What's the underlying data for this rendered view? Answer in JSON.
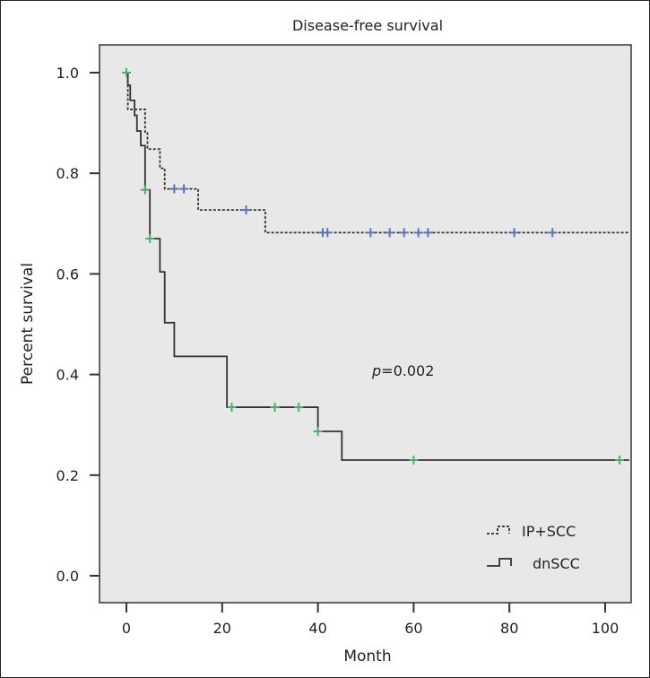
{
  "chart_data": {
    "type": "line",
    "subtype": "kaplan-meier",
    "title": "Disease-free survival",
    "xlabel": "Month",
    "ylabel": "Percent survival",
    "xlim": [
      -6,
      106
    ],
    "ylim": [
      -0.05,
      1.06
    ],
    "xticks": [
      0,
      20,
      40,
      60,
      80,
      100
    ],
    "yticks": [
      "0.0",
      "0.2",
      "0.4",
      "0.6",
      "0.8",
      "1.0"
    ],
    "grid": false,
    "legend_position": "bottom-right",
    "annotation": {
      "p_label": "p",
      "p_value": "=0.002"
    },
    "series": [
      {
        "name": "IP+SCC",
        "style": "dashed",
        "censor_color": "#5b74b8",
        "steps": [
          [
            0,
            1.0
          ],
          [
            0.3,
            0.927
          ],
          [
            3.9,
            0.882
          ],
          [
            4.4,
            0.848
          ],
          [
            7,
            0.81
          ],
          [
            8,
            0.769
          ],
          [
            15,
            0.727
          ],
          [
            29,
            0.682
          ],
          [
            105,
            0.682
          ]
        ],
        "censored": [
          [
            10,
            0.769
          ],
          [
            12,
            0.769
          ],
          [
            25,
            0.727
          ],
          [
            41,
            0.682
          ],
          [
            42,
            0.682
          ],
          [
            51,
            0.682
          ],
          [
            55,
            0.682
          ],
          [
            58,
            0.682
          ],
          [
            61,
            0.682
          ],
          [
            63,
            0.682
          ],
          [
            81,
            0.682
          ],
          [
            89,
            0.682
          ]
        ]
      },
      {
        "name": "dnSCC",
        "style": "solid",
        "censor_color": "#4caf6a",
        "steps": [
          [
            0,
            1.0
          ],
          [
            0.3,
            0.975
          ],
          [
            0.8,
            0.945
          ],
          [
            1.7,
            0.915
          ],
          [
            2.2,
            0.884
          ],
          [
            3,
            0.855
          ],
          [
            3.9,
            0.767
          ],
          [
            4.9,
            0.67
          ],
          [
            7,
            0.604
          ],
          [
            8,
            0.503
          ],
          [
            10,
            0.436
          ],
          [
            21,
            0.335
          ],
          [
            40,
            0.287
          ],
          [
            45,
            0.23
          ],
          [
            105,
            0.23
          ]
        ],
        "censored": [
          [
            0,
            1.0
          ],
          [
            3.9,
            0.767
          ],
          [
            4.9,
            0.67
          ],
          [
            22,
            0.335
          ],
          [
            31,
            0.335
          ],
          [
            36,
            0.335
          ],
          [
            40,
            0.287
          ],
          [
            60,
            0.23
          ],
          [
            103,
            0.23
          ]
        ]
      }
    ]
  }
}
